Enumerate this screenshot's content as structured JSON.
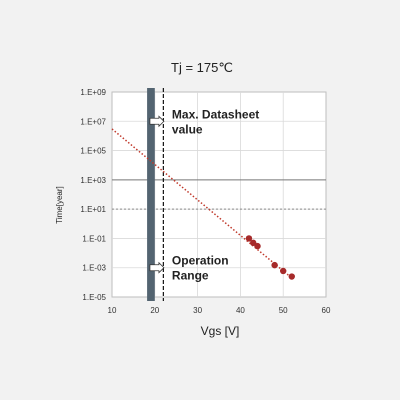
{
  "chart_data": {
    "type": "scatter",
    "title": "Tj = 175℃",
    "xlabel": "Vgs [V]",
    "ylabel": "Time[year]",
    "xlim": [
      10,
      60
    ],
    "xscale": "linear",
    "yscale": "log",
    "ylim": [
      1e-05,
      1000000000.0
    ],
    "xticks": [
      "10",
      "20",
      "30",
      "40",
      "50",
      "60"
    ],
    "yticks": [
      "1.E-05",
      "1.E-03",
      "1.E-01",
      "1.E+01",
      "1.E+03",
      "1.E+05",
      "1.E+07",
      "1.E+09"
    ],
    "grid": true,
    "series": [
      {
        "kind": "points",
        "x": [
          42,
          43,
          44,
          48,
          50,
          52
        ],
        "y": [
          0.1,
          0.05,
          0.03,
          0.0015,
          0.0006,
          0.00025
        ],
        "color": "#a62a2a"
      },
      {
        "kind": "trend_line",
        "x": [
          10,
          52
        ],
        "y": [
          3000000.0,
          0.0002
        ],
        "style": "dotted",
        "color": "#c0392b"
      }
    ],
    "reference_lines": [
      {
        "axis": "y",
        "value": 1000,
        "style": "solid",
        "color": "#777777"
      },
      {
        "axis": "y",
        "value": 10,
        "style": "dashed",
        "color": "#888888"
      },
      {
        "axis": "x",
        "value": 22,
        "style": "dashed",
        "color": "#111111"
      }
    ],
    "band": {
      "x_from": 18.2,
      "x_to": 20,
      "color": "#536471"
    },
    "annotations": [
      {
        "text": "Max. Datasheet value",
        "lines": [
          "Max. Datasheet",
          "value"
        ],
        "x": 24,
        "y": 10000000
      },
      {
        "text": "Operation Range",
        "lines": [
          "Operation",
          "Range"
        ],
        "x": 24,
        "y": 0.001
      }
    ]
  }
}
